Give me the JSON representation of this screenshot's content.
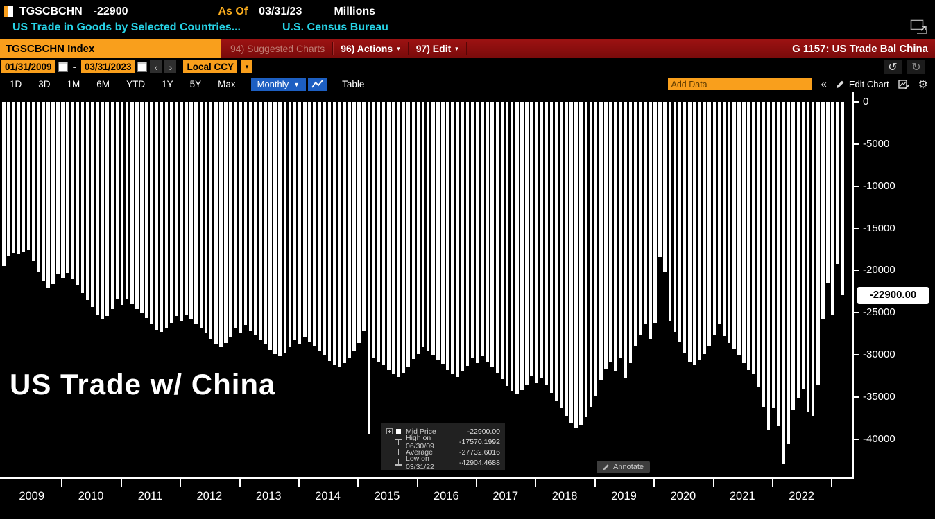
{
  "header": {
    "ticker": "TGSCBCHN",
    "last_value": "-22900",
    "as_of_label": "As Of",
    "as_of_date": "03/31/23",
    "units": "Millions",
    "description": "US Trade in Goods by Selected Countries...",
    "source": "U.S. Census Bureau"
  },
  "menubar": {
    "security_field": "TGSCBCHN Index",
    "suggested_charts": "94) Suggested Charts",
    "actions": "96) Actions",
    "edit": "97) Edit",
    "dropdown_arrow": "▾",
    "chart_title": "G 1157: US Trade Bal China"
  },
  "datebar": {
    "start_date": "01/31/2009",
    "separator": "-",
    "end_date": "03/31/2023",
    "prev": "‹",
    "next": "›",
    "currency": "Local CCY",
    "currency_arrow": "▾",
    "undo": "↺",
    "redo": "↻"
  },
  "periodbar": {
    "ranges": [
      "1D",
      "3D",
      "1M",
      "6M",
      "YTD",
      "1Y",
      "5Y",
      "Max"
    ],
    "frequency": "Monthly",
    "frequency_arrow": "▼",
    "table_label": "Table",
    "add_data_placeholder": "Add Data",
    "collapse": "«",
    "edit_chart": "Edit Chart"
  },
  "chart": {
    "overlay_title": "US Trade w/ China",
    "last_price_label": "-22900.00",
    "annotate_label": "Annotate",
    "legend": {
      "rows": [
        {
          "icon": "mid-price-square",
          "label": "Mid Price",
          "value": "-22900.00"
        },
        {
          "icon": "high-marker",
          "label": "High on 06/30/09",
          "value": "-17570.1992"
        },
        {
          "icon": "average-marker",
          "label": "Average",
          "value": "-27732.6016"
        },
        {
          "icon": "low-marker",
          "label": "Low on 03/31/22",
          "value": "-42904.4688"
        }
      ]
    }
  },
  "colors": {
    "amber": "#f99f1c",
    "red_bar": "#8a1111",
    "blue": "#1d5fc2",
    "cyan": "#27d3e6",
    "bar": "#ffffff"
  },
  "chart_data": {
    "type": "bar",
    "title": "US Trade w/ China",
    "series_name": "TGSCBCHN Index - US Trade Bal China",
    "units": "Millions USD",
    "frequency": "monthly",
    "start": "2009-01",
    "end": "2023-03",
    "ylim": [
      -44700,
      0
    ],
    "y_ticks": [
      0,
      -5000,
      -10000,
      -15000,
      -20000,
      -25000,
      -30000,
      -35000,
      -40000
    ],
    "x_year_labels": [
      "2009",
      "2010",
      "2011",
      "2012",
      "2013",
      "2014",
      "2015",
      "2016",
      "2017",
      "2018",
      "2019",
      "2020",
      "2021",
      "2022"
    ],
    "grid": false,
    "legend_position": "bottom-center",
    "stats": {
      "last": -22900.0,
      "high": -17570.1992,
      "high_date": "06/30/09",
      "average": -27732.6016,
      "low": -42904.4688,
      "low_date": "03/31/22"
    },
    "values": [
      -19500,
      -18300,
      -17900,
      -18100,
      -17800,
      -17570.1992,
      -18900,
      -20100,
      -21300,
      -22100,
      -21600,
      -20400,
      -20900,
      -20300,
      -21000,
      -21800,
      -22700,
      -23500,
      -24300,
      -25200,
      -25800,
      -25400,
      -24600,
      -23400,
      -24100,
      -23300,
      -23900,
      -24600,
      -25100,
      -25600,
      -26300,
      -27000,
      -27300,
      -26900,
      -26200,
      -25400,
      -26000,
      -25200,
      -25800,
      -26400,
      -26900,
      -27400,
      -28100,
      -28700,
      -29100,
      -28600,
      -27900,
      -26800,
      -27400,
      -26500,
      -27100,
      -27700,
      -28200,
      -28700,
      -29400,
      -29900,
      -30200,
      -29800,
      -29100,
      -28200,
      -28800,
      -27900,
      -28400,
      -29000,
      -29600,
      -30100,
      -30700,
      -31200,
      -31500,
      -31000,
      -30300,
      -29500,
      -28600,
      -27200,
      -39400,
      -30300,
      -30800,
      -31200,
      -31800,
      -32300,
      -32600,
      -32100,
      -31400,
      -30500,
      -29900,
      -29100,
      -29600,
      -30100,
      -30600,
      -31100,
      -31800,
      -32300,
      -32600,
      -32000,
      -31300,
      -30400,
      -31000,
      -30200,
      -30800,
      -31500,
      -32200,
      -32900,
      -33700,
      -34300,
      -34700,
      -34200,
      -33500,
      -32500,
      -33400,
      -32800,
      -33600,
      -34500,
      -35400,
      -36300,
      -37200,
      -38100,
      -38700,
      -38300,
      -37400,
      -36200,
      -34900,
      -33000,
      -31600,
      -30800,
      -31900,
      -30400,
      -32700,
      -31000,
      -28900,
      -27700,
      -26400,
      -28100,
      -26200,
      -18400,
      -20100,
      -26000,
      -27300,
      -28400,
      -29800,
      -30900,
      -31200,
      -30600,
      -29900,
      -28900,
      -27600,
      -26400,
      -27800,
      -28600,
      -29300,
      -30100,
      -31000,
      -31800,
      -32300,
      -33800,
      -36200,
      -38900,
      -36300,
      -38500,
      -42904.4688,
      -40600,
      -36500,
      -35200,
      -34100,
      -36800,
      -37300,
      -33500,
      -25800,
      -21500,
      -25300,
      -19200,
      -22900
    ]
  }
}
